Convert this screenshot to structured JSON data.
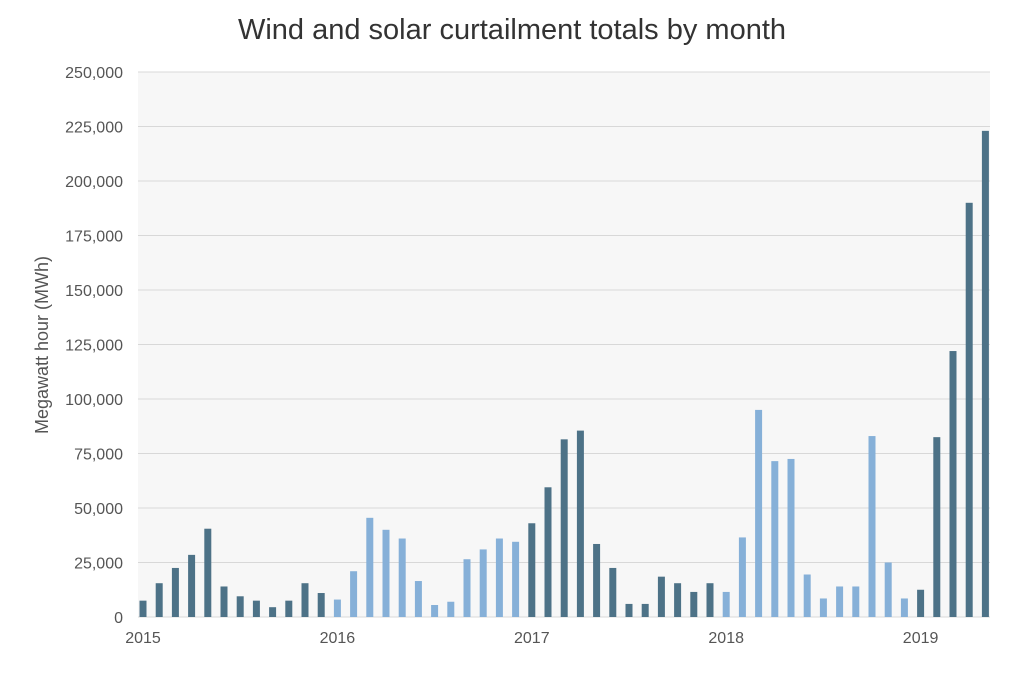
{
  "chart_data": {
    "type": "bar",
    "title": "Wind and solar curtailment totals by month",
    "ylabel": "Megawatt hour (MWh)",
    "xlabel": "",
    "ylim": [
      0,
      250000
    ],
    "yticks": [
      0,
      25000,
      50000,
      75000,
      100000,
      125000,
      150000,
      175000,
      200000,
      225000,
      250000
    ],
    "ytick_labels": [
      "0",
      "25,000",
      "50,000",
      "75,000",
      "100,000",
      "125,000",
      "150,000",
      "175,000",
      "200,000",
      "225,000",
      "250,000"
    ],
    "xtick_labels": [
      {
        "label": "2015",
        "month_index": 0
      },
      {
        "label": "2016",
        "month_index": 12
      },
      {
        "label": "2017",
        "month_index": 24
      },
      {
        "label": "2018",
        "month_index": 36
      },
      {
        "label": "2019",
        "month_index": 48
      }
    ],
    "colors": {
      "dark": "#4d7287",
      "light": "#86b0d8",
      "plot_bg": "#f7f7f7",
      "grid": "#d8d8d8"
    },
    "categories": [
      "2015-01",
      "2015-02",
      "2015-03",
      "2015-04",
      "2015-05",
      "2015-06",
      "2015-07",
      "2015-08",
      "2015-09",
      "2015-10",
      "2015-11",
      "2015-12",
      "2016-01",
      "2016-02",
      "2016-03",
      "2016-04",
      "2016-05",
      "2016-06",
      "2016-07",
      "2016-08",
      "2016-09",
      "2016-10",
      "2016-11",
      "2016-12",
      "2017-01",
      "2017-02",
      "2017-03",
      "2017-04",
      "2017-05",
      "2017-06",
      "2017-07",
      "2017-08",
      "2017-09",
      "2017-10",
      "2017-11",
      "2017-12",
      "2018-01",
      "2018-02",
      "2018-03",
      "2018-04",
      "2018-05",
      "2018-06",
      "2018-07",
      "2018-08",
      "2018-09",
      "2018-10",
      "2018-11",
      "2018-12",
      "2019-01",
      "2019-02",
      "2019-03",
      "2019-04",
      "2019-05"
    ],
    "values": [
      7500,
      15500,
      22500,
      28500,
      40500,
      14000,
      9500,
      7500,
      4500,
      7500,
      15500,
      11000,
      8000,
      21000,
      45500,
      40000,
      36000,
      16500,
      5500,
      7000,
      26500,
      31000,
      36000,
      34500,
      43000,
      59500,
      81500,
      85500,
      33500,
      22500,
      6000,
      6000,
      18500,
      15500,
      11500,
      15500,
      11500,
      36500,
      95000,
      71500,
      72500,
      19500,
      8500,
      14000,
      14000,
      83000,
      25000,
      8500,
      12500,
      82500,
      122000,
      190000,
      223000
    ],
    "shades": [
      "dark",
      "dark",
      "dark",
      "dark",
      "dark",
      "dark",
      "dark",
      "dark",
      "dark",
      "dark",
      "dark",
      "dark",
      "light",
      "light",
      "light",
      "light",
      "light",
      "light",
      "light",
      "light",
      "light",
      "light",
      "light",
      "light",
      "dark",
      "dark",
      "dark",
      "dark",
      "dark",
      "dark",
      "dark",
      "dark",
      "dark",
      "dark",
      "dark",
      "dark",
      "light",
      "light",
      "light",
      "light",
      "light",
      "light",
      "light",
      "light",
      "light",
      "light",
      "light",
      "light",
      "dark",
      "dark",
      "dark",
      "dark",
      "dark"
    ]
  }
}
